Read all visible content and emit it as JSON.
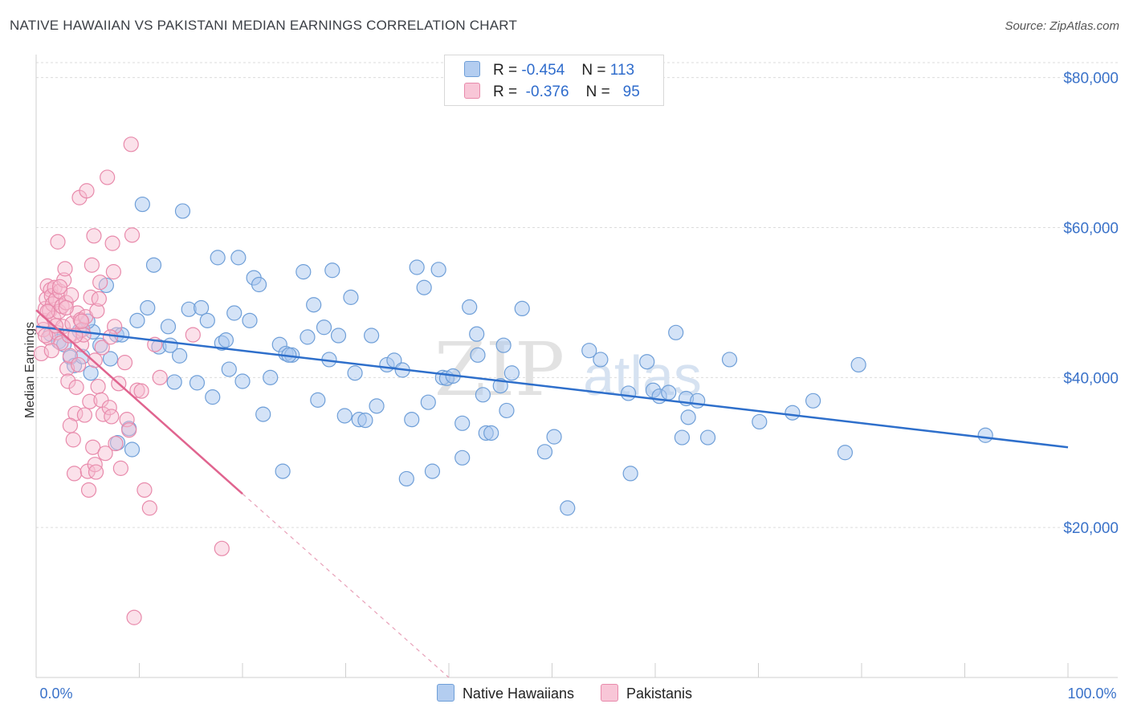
{
  "title": "NATIVE HAWAIIAN VS PAKISTANI MEDIAN EARNINGS CORRELATION CHART",
  "source": "Source: ZipAtlas.com",
  "watermark": {
    "zip": "ZIP",
    "atlas": "atlas"
  },
  "legend_top": [
    {
      "r_label": "R =",
      "r_value": "-0.454",
      "n_label": "N =",
      "n_value": "113"
    },
    {
      "r_label": "R =",
      "r_value": "-0.376",
      "n_label": "N =",
      "n_value": "95"
    }
  ],
  "legend_bottom": [
    "Native Hawaiians",
    "Pakistanis"
  ],
  "colors": {
    "blue_fill": "#a9c8ef",
    "blue_stroke": "#6f9fd8",
    "blue_line": "#2e6fcb",
    "pink_fill": "#f6bcd0",
    "pink_stroke": "#e88aab",
    "pink_line": "#e0648f",
    "axis_label": "#3a72c9",
    "grid": "#dcdcdc"
  },
  "chart_data": {
    "type": "scatter",
    "title": "NATIVE HAWAIIAN VS PAKISTANI MEDIAN EARNINGS CORRELATION CHART",
    "xlabel": "",
    "ylabel": "Median Earnings",
    "xlim": [
      0,
      100
    ],
    "ylim": [
      0,
      82000
    ],
    "x_tick_labels": [
      "0.0%",
      "100.0%"
    ],
    "y_ticks": [
      20000,
      40000,
      60000,
      80000
    ],
    "y_tick_labels": [
      "$20,000",
      "$40,000",
      "$60,000",
      "$80,000"
    ],
    "grid": true,
    "legend_position": "top-center",
    "series": [
      {
        "name": "Native Hawaiians",
        "r": -0.454,
        "n": 113,
        "trend": {
          "x": [
            0,
            100
          ],
          "y": [
            46800,
            30700
          ]
        },
        "points": [
          [
            1.4,
            45800
          ],
          [
            2.2,
            44800
          ],
          [
            3.3,
            42700
          ],
          [
            3.7,
            41600
          ],
          [
            4.5,
            42800
          ],
          [
            5.3,
            40600
          ],
          [
            5.5,
            46100
          ],
          [
            6.2,
            44300
          ],
          [
            6.8,
            52300
          ],
          [
            7.2,
            42500
          ],
          [
            7.8,
            45700
          ],
          [
            8.3,
            45700
          ],
          [
            9.0,
            33200
          ],
          [
            9.3,
            30400
          ],
          [
            9.8,
            47600
          ],
          [
            10.3,
            63100
          ],
          [
            10.8,
            49300
          ],
          [
            11.4,
            55000
          ],
          [
            11.9,
            44100
          ],
          [
            12.8,
            46800
          ],
          [
            13.4,
            39400
          ],
          [
            13.9,
            42900
          ],
          [
            14.2,
            62200
          ],
          [
            14.8,
            49100
          ],
          [
            15.6,
            39300
          ],
          [
            16.0,
            49300
          ],
          [
            16.6,
            47600
          ],
          [
            17.1,
            37400
          ],
          [
            17.6,
            56000
          ],
          [
            18.0,
            44600
          ],
          [
            18.7,
            41100
          ],
          [
            19.2,
            48600
          ],
          [
            19.6,
            56000
          ],
          [
            20.0,
            39500
          ],
          [
            20.7,
            47600
          ],
          [
            21.1,
            53300
          ],
          [
            21.6,
            52400
          ],
          [
            22.0,
            35100
          ],
          [
            22.7,
            40000
          ],
          [
            23.6,
            44400
          ],
          [
            23.9,
            27500
          ],
          [
            24.2,
            43200
          ],
          [
            24.8,
            43000
          ],
          [
            25.9,
            54100
          ],
          [
            26.3,
            45400
          ],
          [
            26.9,
            49700
          ],
          [
            27.3,
            37000
          ],
          [
            27.9,
            46700
          ],
          [
            28.4,
            42400
          ],
          [
            28.7,
            54300
          ],
          [
            29.3,
            45600
          ],
          [
            29.9,
            34900
          ],
          [
            30.5,
            50700
          ],
          [
            30.9,
            40600
          ],
          [
            31.3,
            34400
          ],
          [
            31.9,
            34300
          ],
          [
            32.5,
            45600
          ],
          [
            33.0,
            36200
          ],
          [
            34.0,
            41700
          ],
          [
            34.7,
            42300
          ],
          [
            35.5,
            41000
          ],
          [
            35.9,
            26500
          ],
          [
            36.4,
            34400
          ],
          [
            36.9,
            54700
          ],
          [
            37.6,
            52000
          ],
          [
            38.0,
            36700
          ],
          [
            38.4,
            27500
          ],
          [
            39.0,
            54400
          ],
          [
            39.4,
            40000
          ],
          [
            39.8,
            39900
          ],
          [
            40.4,
            40200
          ],
          [
            41.3,
            33900
          ],
          [
            41.3,
            29300
          ],
          [
            42.0,
            49400
          ],
          [
            42.7,
            45800
          ],
          [
            42.8,
            43000
          ],
          [
            43.3,
            37700
          ],
          [
            43.6,
            32600
          ],
          [
            44.1,
            32600
          ],
          [
            45.0,
            38900
          ],
          [
            45.3,
            44300
          ],
          [
            45.6,
            35600
          ],
          [
            46.1,
            40600
          ],
          [
            47.1,
            49200
          ],
          [
            49.3,
            30100
          ],
          [
            50.2,
            32100
          ],
          [
            51.5,
            22600
          ],
          [
            53.6,
            43600
          ],
          [
            54.7,
            42400
          ],
          [
            57.4,
            37900
          ],
          [
            57.6,
            27200
          ],
          [
            59.2,
            42100
          ],
          [
            59.8,
            38300
          ],
          [
            60.4,
            37500
          ],
          [
            62.0,
            46000
          ],
          [
            62.6,
            32000
          ],
          [
            63.0,
            37200
          ],
          [
            63.2,
            34700
          ],
          [
            64.1,
            36900
          ],
          [
            65.1,
            32000
          ],
          [
            67.2,
            42400
          ],
          [
            70.1,
            34100
          ],
          [
            73.3,
            35300
          ],
          [
            75.3,
            36900
          ],
          [
            78.4,
            30000
          ],
          [
            79.7,
            41700
          ],
          [
            92.0,
            32300
          ],
          [
            4.2,
            46200
          ],
          [
            7.9,
            31300
          ],
          [
            5.0,
            47500
          ],
          [
            2.7,
            44400
          ],
          [
            13.0,
            44300
          ],
          [
            24.5,
            43000
          ],
          [
            61.3,
            38000
          ],
          [
            18.4,
            45000
          ]
        ]
      },
      {
        "name": "Pakistanis",
        "r": -0.376,
        "n": 95,
        "trend": {
          "x": [
            0,
            20
          ],
          "y": [
            49000,
            24500
          ]
        },
        "trend_dashed": {
          "x": [
            20,
            40
          ],
          "y": [
            24500,
            0
          ]
        },
        "points": [
          [
            0.5,
            43200
          ],
          [
            0.7,
            46400
          ],
          [
            0.8,
            47600
          ],
          [
            0.9,
            49200
          ],
          [
            1.0,
            50500
          ],
          [
            1.1,
            52200
          ],
          [
            1.2,
            45300
          ],
          [
            1.3,
            48900
          ],
          [
            1.4,
            51700
          ],
          [
            1.5,
            50900
          ],
          [
            1.6,
            49800
          ],
          [
            1.7,
            47900
          ],
          [
            1.8,
            52000
          ],
          [
            1.9,
            50400
          ],
          [
            2.0,
            46000
          ],
          [
            2.1,
            58100
          ],
          [
            2.2,
            48800
          ],
          [
            2.3,
            51500
          ],
          [
            2.4,
            44600
          ],
          [
            2.5,
            49500
          ],
          [
            2.6,
            46800
          ],
          [
            2.7,
            53000
          ],
          [
            2.8,
            54500
          ],
          [
            2.9,
            50000
          ],
          [
            3.0,
            41200
          ],
          [
            3.1,
            39500
          ],
          [
            3.2,
            45600
          ],
          [
            3.3,
            42900
          ],
          [
            3.4,
            51000
          ],
          [
            3.5,
            47200
          ],
          [
            3.6,
            31700
          ],
          [
            3.7,
            27200
          ],
          [
            3.8,
            35200
          ],
          [
            3.9,
            38700
          ],
          [
            4.0,
            48600
          ],
          [
            4.1,
            41700
          ],
          [
            4.2,
            64000
          ],
          [
            4.3,
            47700
          ],
          [
            4.4,
            44400
          ],
          [
            4.5,
            46400
          ],
          [
            4.6,
            45700
          ],
          [
            4.7,
            35000
          ],
          [
            4.8,
            48100
          ],
          [
            4.9,
            64900
          ],
          [
            5.0,
            27500
          ],
          [
            5.1,
            25000
          ],
          [
            5.2,
            36800
          ],
          [
            5.3,
            50700
          ],
          [
            5.4,
            55000
          ],
          [
            5.5,
            30700
          ],
          [
            5.6,
            58900
          ],
          [
            5.7,
            28400
          ],
          [
            5.8,
            27400
          ],
          [
            5.9,
            48900
          ],
          [
            6.0,
            38800
          ],
          [
            6.1,
            50500
          ],
          [
            6.2,
            52700
          ],
          [
            6.3,
            37000
          ],
          [
            6.5,
            35100
          ],
          [
            6.7,
            29900
          ],
          [
            6.9,
            66700
          ],
          [
            7.1,
            36000
          ],
          [
            7.3,
            34800
          ],
          [
            7.4,
            57900
          ],
          [
            7.5,
            54100
          ],
          [
            7.6,
            46800
          ],
          [
            7.7,
            31200
          ],
          [
            8.0,
            39200
          ],
          [
            8.2,
            27900
          ],
          [
            8.6,
            42000
          ],
          [
            8.8,
            34400
          ],
          [
            9.0,
            33000
          ],
          [
            9.2,
            71100
          ],
          [
            9.3,
            59000
          ],
          [
            9.5,
            8000
          ],
          [
            9.8,
            38300
          ],
          [
            10.2,
            38200
          ],
          [
            10.5,
            25000
          ],
          [
            11.0,
            22600
          ],
          [
            11.5,
            44400
          ],
          [
            12.0,
            40000
          ],
          [
            15.2,
            45700
          ],
          [
            18.0,
            17200
          ],
          [
            2.3,
            52100
          ],
          [
            1.5,
            43600
          ],
          [
            3.8,
            45600
          ],
          [
            4.4,
            47500
          ],
          [
            6.4,
            44000
          ],
          [
            2.9,
            49300
          ],
          [
            1.9,
            46900
          ],
          [
            5.7,
            42300
          ],
          [
            3.3,
            33600
          ],
          [
            1.1,
            48800
          ],
          [
            0.9,
            45600
          ],
          [
            7.2,
            45400
          ]
        ]
      }
    ]
  }
}
